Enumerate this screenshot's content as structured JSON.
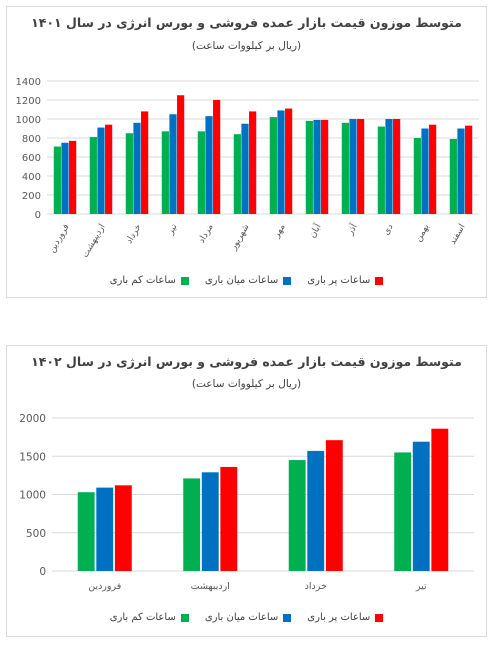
{
  "colors": {
    "low": "#00b050",
    "mid": "#0070c0",
    "peak": "#ff0000",
    "grid": "#d9d9d9",
    "text": "#595959"
  },
  "chart_data": [
    {
      "type": "bar",
      "title": "متوسط موزون قیمت بازار عمده فروشی و بورس انرژی در سال ۱۴۰۱",
      "subtitle": "(ریال بر کیلووات ساعت)",
      "categories": [
        "فروردین",
        "اردیبهشت",
        "خرداد",
        "تیر",
        "مرداد",
        "شهریور",
        "مهر",
        "آبان",
        "آذر",
        "دی",
        "بهمن",
        "اسفند"
      ],
      "series": [
        {
          "name": "ساعات کم باری",
          "values": [
            710,
            810,
            850,
            870,
            870,
            840,
            1020,
            980,
            960,
            920,
            800,
            790
          ]
        },
        {
          "name": "ساعات میان باری",
          "values": [
            750,
            910,
            960,
            1050,
            1030,
            950,
            1090,
            990,
            1000,
            1000,
            900,
            900
          ]
        },
        {
          "name": "ساعات پر باری",
          "values": [
            770,
            940,
            1080,
            1250,
            1200,
            1080,
            1110,
            990,
            1000,
            1000,
            940,
            930
          ]
        }
      ],
      "ylim": [
        0,
        1400
      ],
      "yticks": [
        0,
        200,
        400,
        600,
        800,
        1000,
        1200,
        1400
      ],
      "legend_position": "bottom",
      "grid": true
    },
    {
      "type": "bar",
      "title": "متوسط موزون قیمت بازار عمده فروشی و بورس انرژی در سال ۱۴۰۲",
      "subtitle": "(ریال بر کیلووات ساعت)",
      "categories": [
        "فروردین",
        "اردیبهشت",
        "خرداد",
        "تیر"
      ],
      "series": [
        {
          "name": "ساعات کم باری",
          "values": [
            1030,
            1210,
            1450,
            1550
          ]
        },
        {
          "name": "ساعات میان باری",
          "values": [
            1090,
            1290,
            1570,
            1690
          ]
        },
        {
          "name": "ساعات پر باری",
          "values": [
            1120,
            1360,
            1710,
            1860
          ]
        }
      ],
      "ylim": [
        0,
        2000
      ],
      "yticks": [
        0,
        500,
        1000,
        1500,
        2000
      ],
      "legend_position": "bottom",
      "grid": true
    }
  ]
}
